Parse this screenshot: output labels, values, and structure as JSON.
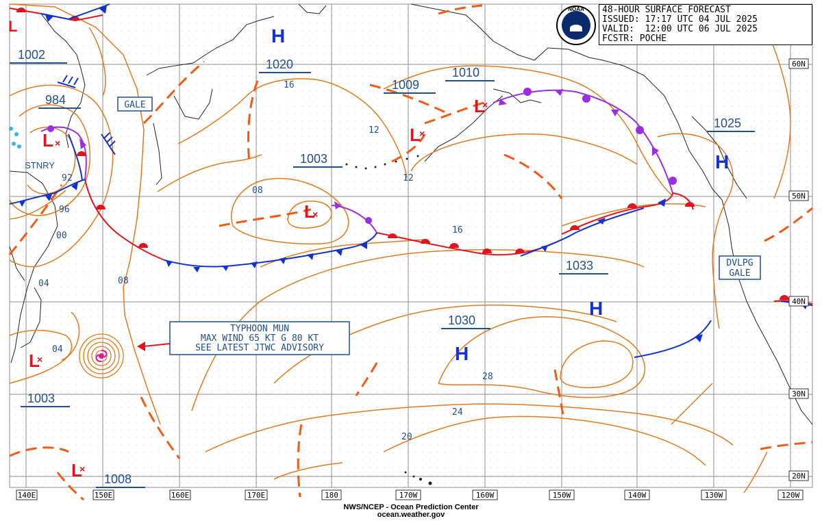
{
  "header": {
    "line1": "48-HOUR SURFACE FORECAST",
    "line2": "ISSUED: 17:17 UTC 04 JUL 2025",
    "line3": "VALID:  12:00 UTC 06 JUL 2025",
    "line4": "FCSTR: POCHE"
  },
  "logo": {
    "text": "NOAA"
  },
  "footer": {
    "line1": "NWS/NCEP - Ocean Prediction Center",
    "line2": "ocean.weather.gov"
  },
  "lon_labels": [
    "140E",
    "150E",
    "160E",
    "170E",
    "180",
    "170W",
    "160W",
    "150W",
    "140W",
    "130W",
    "120W"
  ],
  "lat_labels": [
    "60N",
    "50N",
    "40N",
    "30N",
    "20N"
  ],
  "pressure_labels": [
    "1002",
    "984",
    "1020",
    "1009",
    "1010",
    "1003",
    "1025",
    "1033",
    "1030",
    "1003",
    "1008"
  ],
  "isobar_values": [
    "16",
    "12",
    "12",
    "08",
    "92",
    "96",
    "00",
    "04",
    "08",
    "04",
    "16",
    "28",
    "24",
    "20"
  ],
  "systems": {
    "high": "H",
    "low": "L"
  },
  "boxes": {
    "gale": "GALE",
    "dvlpg1": "DVLPG",
    "dvlpg2": "GALE",
    "typhoon1": "TYPHOON MUN",
    "typhoon2": "MAX WIND 65 KT G 80 KT",
    "typhoon3": "SEE LATEST JTWC ADVISORY"
  },
  "stationary_label": "STNRY",
  "colors": {
    "isobar": "#e07a1c",
    "trough": "#f05a14",
    "cold_front": "#1133cc",
    "warm_front": "#e0141e",
    "occluded": "#9a2ee0",
    "high": "#1133cc",
    "low": "#e0141e",
    "label": "#1f4f8f",
    "grid": "#8a8a8a",
    "typhoon": "#e0149a"
  }
}
